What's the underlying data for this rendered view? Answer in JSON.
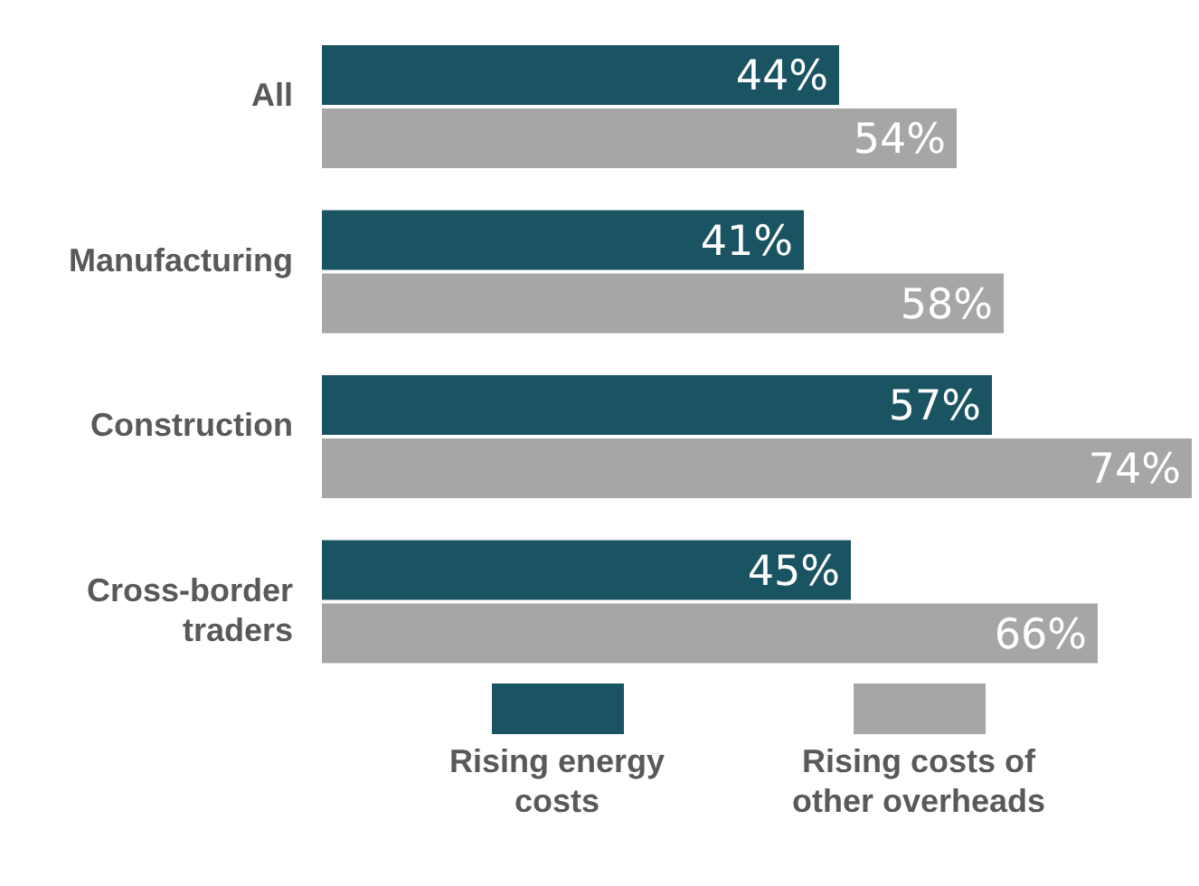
{
  "chart_data": {
    "type": "bar",
    "orientation": "horizontal",
    "categories": [
      "All",
      "Manufacturing",
      "Construction",
      "Cross-border traders"
    ],
    "series": [
      {
        "name": "Rising energy costs",
        "color": "#1a5361",
        "values": [
          44,
          41,
          57,
          45
        ],
        "value_labels": [
          "44%",
          "41%",
          "57%",
          "45%"
        ]
      },
      {
        "name": "Rising costs of other overheads",
        "color": "#a6a6a6",
        "values": [
          54,
          58,
          74,
          66
        ],
        "value_labels": [
          "54%",
          "58%",
          "74%",
          "66%"
        ]
      }
    ],
    "legend": "bottom",
    "grid": false,
    "tick_labels": "y"
  }
}
